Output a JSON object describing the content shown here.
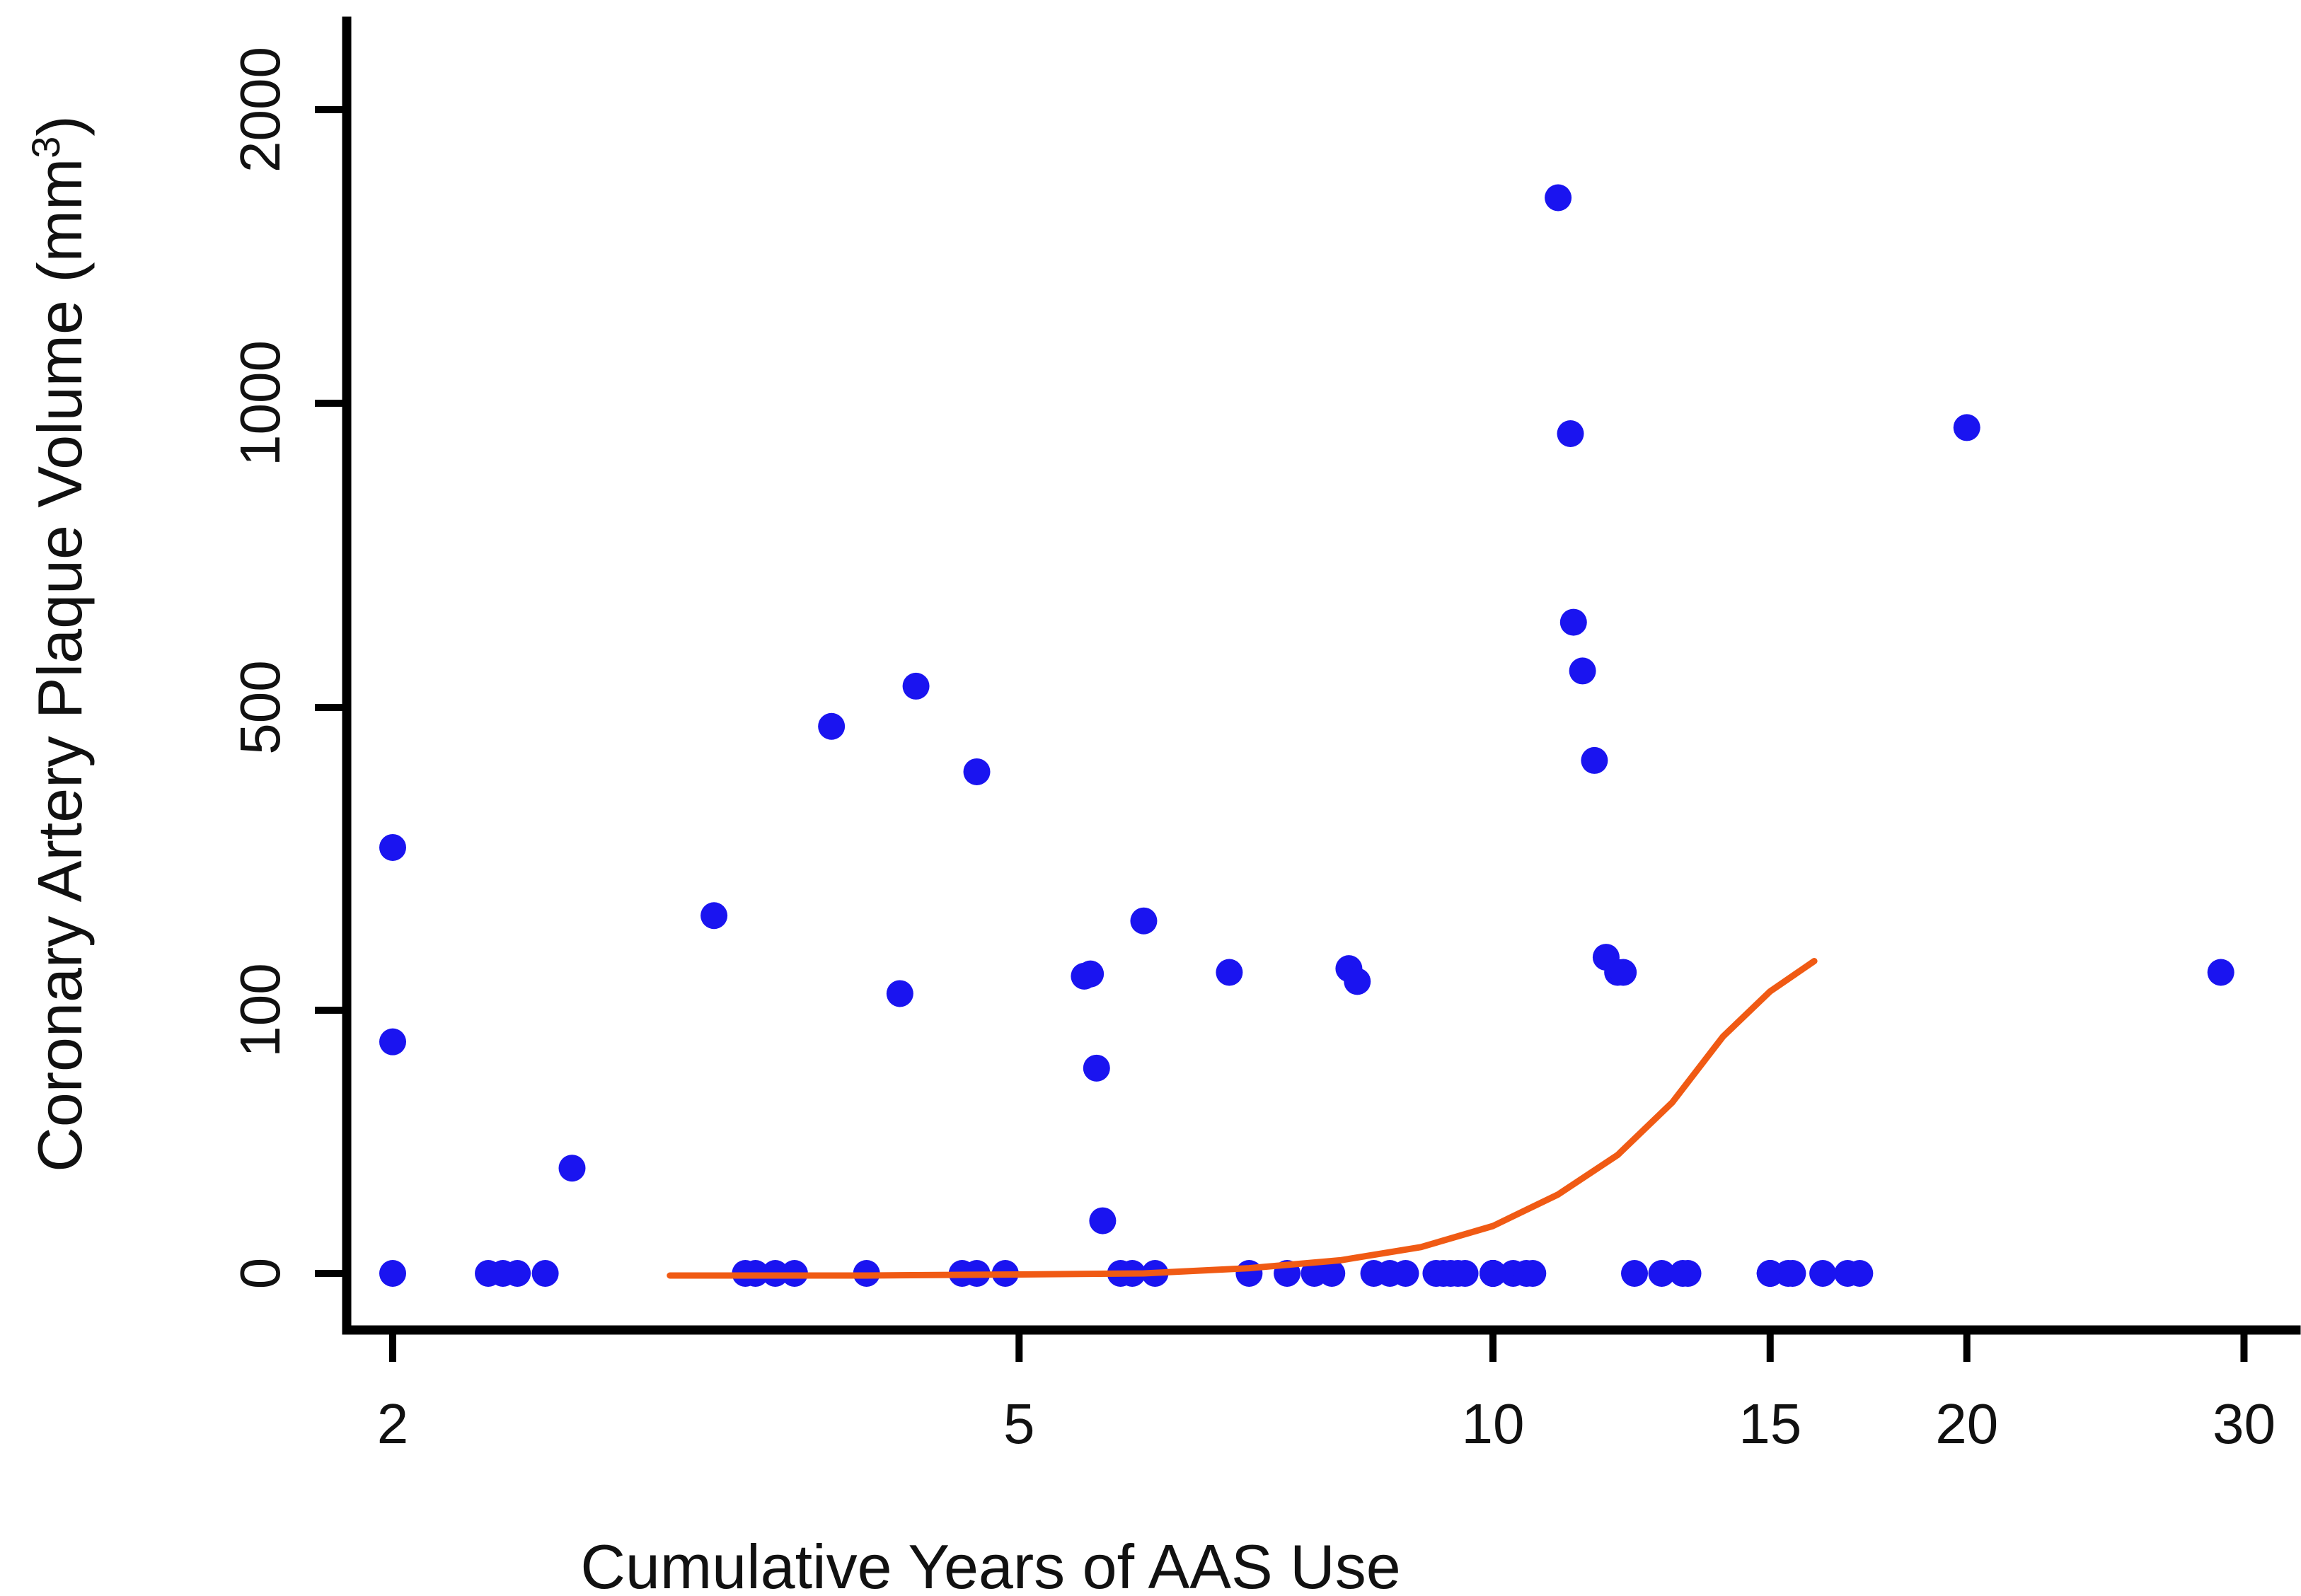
{
  "chart_data": {
    "type": "scatter",
    "title": "",
    "xlabel": "Cumulative Years of AAS Use",
    "ylabel": "Coronary Artery Plaque Volume (mm",
    "ylabel_superscript": "3",
    "ylabel_close": ")",
    "x_scale": "log",
    "y_scale": "pseudo-log",
    "xlim": [
      1.95,
      31
    ],
    "ylim": [
      -10,
      2300
    ],
    "x_ticks": [
      2,
      5,
      10,
      15,
      20,
      30
    ],
    "x_tick_labels": [
      "2",
      "5",
      "10",
      "15",
      "20",
      "30"
    ],
    "y_ticks": [
      0,
      100,
      500,
      1000,
      2000
    ],
    "y_tick_labels": [
      "0",
      "100",
      "500",
      "1000",
      "2000"
    ],
    "grid": false,
    "legend": "none",
    "colors": {
      "points": "#1a14f0",
      "fit_line": "#f05a14",
      "axes": "#000000"
    },
    "series": [
      {
        "type": "scatter",
        "x": [
          2,
          2,
          2,
          2.3,
          2.35,
          2.4,
          2.5,
          2.6,
          3.2,
          3.35,
          3.4,
          3.5,
          3.6,
          3.8,
          4.0,
          4.2,
          4.3,
          4.6,
          4.7,
          4.7,
          4.9,
          5.5,
          5.55,
          5.6,
          5.65,
          5.8,
          5.9,
          6.0,
          6.1,
          6.8,
          7.0,
          7.4,
          7.7,
          7.9,
          8.1,
          8.2,
          8.4,
          8.6,
          8.8,
          9.2,
          9.3,
          9.4,
          9.5,
          9.6,
          10,
          10,
          10,
          10,
          10,
          10,
          10,
          10.3,
          10.5,
          10.6,
          11,
          11.2,
          11.25,
          11.4,
          11.6,
          11.8,
          12,
          12.1,
          12.3,
          12.8,
          13.2,
          13.3,
          15,
          15,
          15,
          15,
          15.4,
          15.5,
          16.2,
          16.8,
          17.1,
          20,
          29
        ],
        "y": [
          0,
          88,
          315,
          0,
          0,
          0,
          0,
          40,
          225,
          0,
          0,
          0,
          0,
          475,
          0,
          122,
          535,
          0,
          0,
          415,
          0,
          145,
          148,
          78,
          20,
          0,
          0,
          218,
          0,
          150,
          0,
          0,
          0,
          0,
          155,
          138,
          0,
          0,
          0,
          0,
          0,
          0,
          0,
          0,
          0,
          0,
          0,
          0,
          0,
          0,
          0,
          0,
          0,
          0,
          1700,
          950,
          640,
          560,
          430,
          170,
          150,
          150,
          0,
          0,
          0,
          0,
          0,
          0,
          0,
          0,
          0,
          0,
          0,
          0,
          0,
          960,
          150
        ],
        "note_omitted": ""
      },
      {
        "type": "fit_line",
        "x": [
          3.0,
          4.0,
          5.0,
          6.0,
          7.0,
          8.0,
          9.0,
          10.0,
          11.0,
          12.0,
          13.0,
          14.0,
          15.0,
          16.0
        ],
        "y": [
          -2,
          -2,
          -1,
          0,
          2,
          5,
          10,
          18,
          30,
          45,
          65,
          90,
          125,
          165
        ]
      }
    ]
  }
}
